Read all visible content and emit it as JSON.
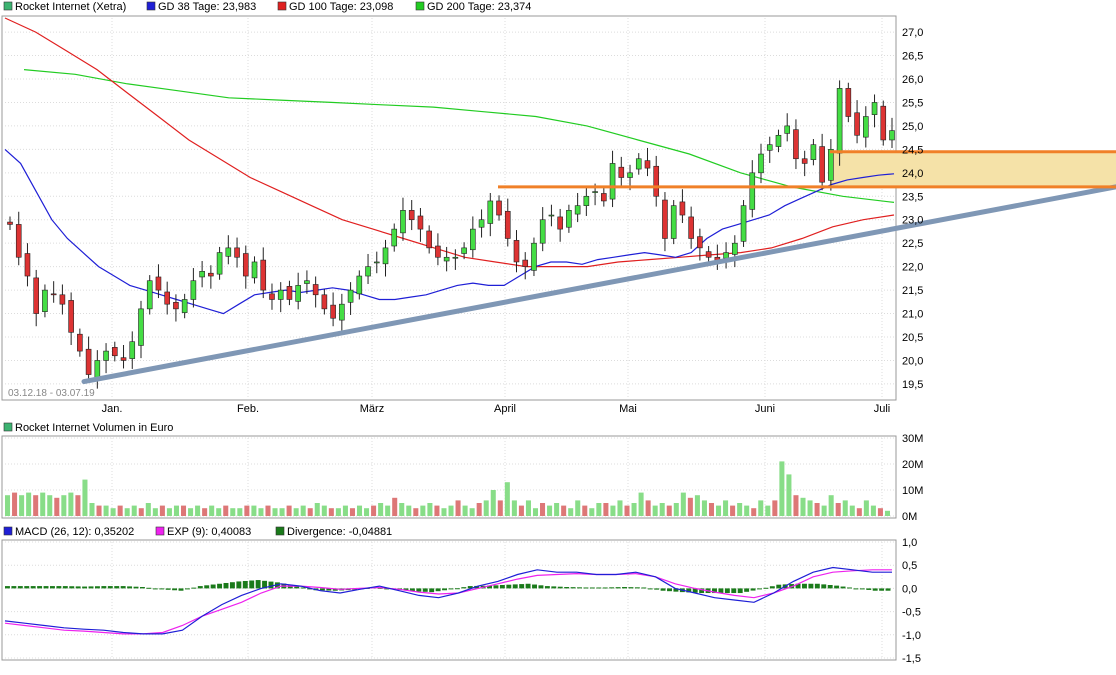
{
  "colors": {
    "price_series": "#3cb371",
    "gd38": "#1f1fd6",
    "gd100": "#e02020",
    "gd200": "#22cc22",
    "up_candle": "#44dd44",
    "down_candle": "#dd3333",
    "trendline": "#7f97b5",
    "resistance": "#f08028",
    "zone_fill": "#f5e2a8",
    "macd": "#1f1fd6",
    "exp": "#ee22ee",
    "divergence": "#1a7a1a",
    "volume_up": "#88dd88",
    "volume_down": "#dd7777"
  },
  "legend_price": [
    {
      "label": "Rocket Internet (Xetra)",
      "color": "#3cb371"
    },
    {
      "label": "GD 38 Tage: 23,983",
      "color": "#1f1fd6"
    },
    {
      "label": "GD 100 Tage: 23,098",
      "color": "#e02020"
    },
    {
      "label": "GD 200 Tage: 23,374",
      "color": "#22cc22"
    }
  ],
  "legend_volume": [
    {
      "label": "Rocket Internet Volumen in Euro",
      "color": "#3cb371"
    }
  ],
  "legend_macd": [
    {
      "label": "MACD (26, 12): 0,35202",
      "color": "#1f1fd6"
    },
    {
      "label": "EXP (9): 0,40083",
      "color": "#ee22ee"
    },
    {
      "label": "Divergence: -0,04881",
      "color": "#1a7a1a"
    }
  ],
  "date_range_label": "03.12.18 - 03.07.19",
  "chart_data": [
    {
      "type": "candlestick",
      "title": "Rocket Internet (Xetra)",
      "x_labels": [
        "Jan.",
        "Feb.",
        "März",
        "April",
        "Mai",
        "Juni",
        "Juli"
      ],
      "y_ticks": [
        "19,5",
        "20,0",
        "20,5",
        "21,0",
        "21,5",
        "22,0",
        "22,5",
        "23,0",
        "23,5",
        "24,0",
        "24,5",
        "25,0",
        "25,5",
        "26,0",
        "26,5",
        "27,0"
      ],
      "ylim": [
        19.2,
        27.3
      ],
      "close": [
        22.9,
        22.2,
        21.8,
        21.0,
        21.5,
        21.4,
        21.2,
        20.6,
        20.2,
        19.7,
        20.0,
        20.2,
        20.1,
        20.0,
        20.4,
        21.1,
        21.7,
        21.5,
        21.2,
        21.1,
        21.3,
        21.7,
        21.9,
        21.8,
        22.3,
        22.4,
        22.2,
        21.8,
        22.1,
        21.5,
        21.3,
        21.5,
        21.3,
        21.6,
        21.7,
        21.4,
        21.1,
        20.9,
        21.2,
        21.5,
        21.8,
        22.0,
        22.1,
        22.4,
        22.8,
        23.2,
        23.0,
        22.8,
        22.4,
        22.2,
        22.2,
        22.2,
        22.4,
        22.8,
        23.0,
        23.4,
        23.1,
        22.6,
        22.1,
        22.0,
        22.5,
        23.0,
        23.1,
        22.8,
        23.2,
        23.3,
        23.5,
        23.6,
        23.4,
        24.2,
        23.9,
        24.0,
        24.3,
        24.1,
        23.5,
        22.6,
        23.3,
        23.1,
        22.6,
        22.4,
        22.2,
        22.1,
        22.3,
        22.5,
        23.3,
        24.0,
        24.4,
        24.6,
        24.8,
        25.0,
        24.3,
        24.2,
        24.6,
        23.8,
        24.5,
        25.8,
        25.2,
        24.8,
        25.2,
        25.5,
        24.7,
        24.9
      ],
      "gd38": [
        24.5,
        24.2,
        23.6,
        23.0,
        22.6,
        22.3,
        22.0,
        21.8,
        21.6,
        21.5,
        21.4,
        21.3,
        21.2,
        21.1,
        21.0,
        21.2,
        21.4,
        21.45,
        21.5,
        21.45,
        21.5,
        21.55,
        21.5,
        21.4,
        21.3,
        21.3,
        21.35,
        21.4,
        21.5,
        21.6,
        21.65,
        21.6,
        21.6,
        21.8,
        22.0,
        22.1,
        22.1,
        22.05,
        22.15,
        22.2,
        22.25,
        22.3,
        22.25,
        22.2,
        22.3,
        22.6,
        22.8,
        22.9,
        23.0,
        23.1,
        23.3,
        23.45,
        23.6,
        23.75,
        23.85,
        23.9,
        23.95,
        23.98
      ],
      "gd100": [
        27.3,
        27.0,
        26.6,
        26.2,
        25.7,
        25.2,
        24.7,
        24.3,
        23.9,
        23.6,
        23.3,
        23.0,
        22.8,
        22.6,
        22.4,
        22.2,
        22.1,
        22.0,
        22.0,
        22.0,
        22.1,
        22.15,
        22.2,
        22.25,
        22.3,
        22.4,
        22.6,
        22.85,
        23.0,
        23.1
      ],
      "gd200": [
        26.2,
        26.1,
        25.9,
        25.75,
        25.6,
        25.55,
        25.5,
        25.45,
        25.4,
        25.3,
        25.2,
        25.0,
        24.7,
        24.4,
        24.0,
        23.7,
        23.5,
        23.37
      ],
      "trendline": [
        [
          19.6,
          0
        ],
        [
          23.7,
          1
        ]
      ],
      "resistance_lines": [
        23.7,
        24.45
      ]
    },
    {
      "type": "bar",
      "title": "Rocket Internet Volumen in Euro",
      "y_ticks": [
        "0M",
        "10M",
        "20M",
        "30M"
      ],
      "ylim": [
        0,
        30
      ],
      "values": [
        8,
        9,
        8,
        9,
        8,
        9,
        8,
        7,
        8,
        9,
        8,
        14,
        5,
        4,
        4,
        3,
        4,
        3,
        4,
        3,
        5,
        3,
        4,
        3,
        4,
        4,
        3,
        4,
        3,
        4,
        3,
        4,
        3,
        3,
        4,
        4,
        3,
        4,
        3,
        3,
        4,
        3,
        4,
        3,
        5,
        4,
        3,
        3,
        4,
        3,
        4,
        3,
        4,
        5,
        4,
        7,
        5,
        4,
        3,
        4,
        5,
        4,
        3,
        4,
        6,
        4,
        3,
        5,
        6,
        10,
        6,
        13,
        6,
        4,
        6,
        3,
        5,
        4,
        5,
        4,
        3,
        6,
        4,
        3,
        5,
        5,
        4,
        6,
        4,
        5,
        9,
        6,
        4,
        5,
        4,
        5,
        9,
        7,
        8,
        6,
        5,
        4,
        6,
        4,
        5,
        4,
        3,
        6,
        4,
        6,
        21,
        16,
        8,
        7,
        6,
        5,
        4,
        8,
        5,
        6,
        4,
        3,
        6,
        4,
        3,
        2
      ]
    },
    {
      "type": "line",
      "title": "MACD (26, 12)",
      "y_ticks": [
        "-1,5",
        "-1,0",
        "-0,5",
        "0,0",
        "0,5",
        "1,0"
      ],
      "ylim": [
        -1.5,
        1.0
      ],
      "macd": [
        -0.7,
        -0.75,
        -0.8,
        -0.85,
        -0.88,
        -0.9,
        -0.95,
        -0.98,
        -0.98,
        -0.9,
        -0.6,
        -0.35,
        -0.15,
        0.0,
        0.1,
        0.05,
        -0.05,
        -0.1,
        -0.02,
        0.05,
        -0.05,
        -0.15,
        -0.2,
        -0.1,
        0.05,
        0.15,
        0.3,
        0.4,
        0.35,
        0.35,
        0.3,
        0.3,
        0.35,
        0.25,
        0.0,
        -0.1,
        -0.2,
        -0.25,
        -0.3,
        -0.1,
        0.15,
        0.35,
        0.45,
        0.4,
        0.35,
        0.35
      ],
      "exp": [
        -0.75,
        -0.8,
        -0.85,
        -0.9,
        -0.92,
        -0.95,
        -0.98,
        -0.98,
        -0.95,
        -0.8,
        -0.6,
        -0.45,
        -0.3,
        -0.1,
        0.05,
        0.05,
        0.02,
        -0.02,
        0.0,
        0.02,
        -0.02,
        -0.08,
        -0.12,
        -0.1,
        0.0,
        0.1,
        0.2,
        0.28,
        0.3,
        0.32,
        0.3,
        0.3,
        0.32,
        0.25,
        0.1,
        0.0,
        -0.08,
        -0.15,
        -0.2,
        -0.1,
        0.05,
        0.25,
        0.35,
        0.38,
        0.4,
        0.4
      ],
      "divergence": [
        0.05,
        0.05,
        0.05,
        0.05,
        0.04,
        0.05,
        0.05,
        0.03,
        -0.02,
        -0.05,
        0.05,
        0.1,
        0.15,
        0.18,
        0.13,
        0.05,
        -0.04,
        -0.05,
        -0.03,
        0.03,
        -0.02,
        -0.06,
        -0.08,
        -0.02,
        0.05,
        0.06,
        0.08,
        0.1,
        0.05,
        0.03,
        0.02,
        0.02,
        0.03,
        0.02,
        -0.05,
        -0.08,
        -0.1,
        -0.1,
        -0.1,
        -0.02,
        0.08,
        0.1,
        0.1,
        0.06,
        0.0,
        -0.05
      ]
    }
  ]
}
